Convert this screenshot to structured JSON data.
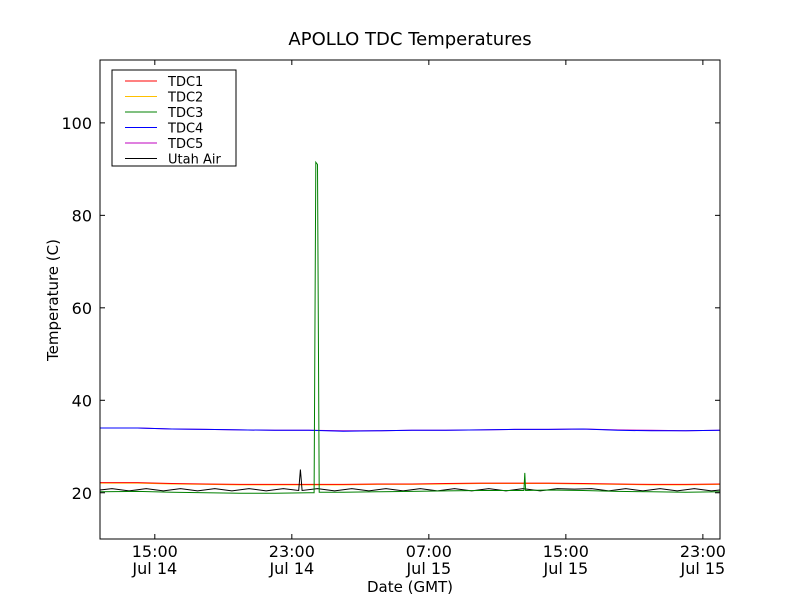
{
  "chart_data": {
    "type": "line",
    "title": "APOLLO TDC Temperatures",
    "xlabel": "Date (GMT)",
    "ylabel": "Temperature (C)",
    "x_units": "hours since Jul 14 00:00 GMT",
    "xlim": [
      11.8,
      48.0
    ],
    "ylim": [
      10,
      113.6
    ],
    "yticks": [
      20,
      40,
      60,
      80,
      100
    ],
    "xticks": [
      {
        "value": 15,
        "time": "15:00",
        "date": "Jul 14"
      },
      {
        "value": 23,
        "time": "23:00",
        "date": "Jul 14"
      },
      {
        "value": 31,
        "time": "07:00",
        "date": "Jul 15"
      },
      {
        "value": 39,
        "time": "15:00",
        "date": "Jul 15"
      },
      {
        "value": 47,
        "time": "23:00",
        "date": "Jul 15"
      }
    ],
    "legend_position": "top-left",
    "grid": false,
    "series": [
      {
        "name": "TDC2",
        "color": "#ffc000",
        "x": [
          11.8,
          14,
          16,
          18,
          20,
          22,
          24,
          26,
          28,
          30,
          32,
          34,
          36,
          38,
          40,
          42,
          44,
          46,
          48
        ],
        "y": [
          22.1,
          22.1,
          21.9,
          21.8,
          21.7,
          21.7,
          21.7,
          21.7,
          21.8,
          21.8,
          21.9,
          22.0,
          22.0,
          22.0,
          21.9,
          21.8,
          21.7,
          21.7,
          21.8
        ]
      },
      {
        "name": "TDC1",
        "color": "#ff0000",
        "x": [
          11.8,
          14,
          16,
          18,
          20,
          22,
          24,
          26,
          28,
          30,
          32,
          34,
          36,
          38,
          40,
          42,
          44,
          46,
          48
        ],
        "y": [
          22.2,
          22.2,
          22.0,
          21.9,
          21.8,
          21.8,
          21.8,
          21.8,
          21.9,
          21.9,
          22.0,
          22.1,
          22.1,
          22.1,
          22.0,
          21.9,
          21.8,
          21.8,
          21.9
        ]
      },
      {
        "name": "TDC5",
        "color": "#bf00bf",
        "x": [
          11.8,
          14,
          16,
          18,
          20,
          22,
          24,
          26,
          28,
          30,
          32,
          34,
          36,
          38,
          40,
          42,
          44,
          46,
          48
        ],
        "y": [
          34.0,
          34.0,
          33.8,
          33.7,
          33.6,
          33.5,
          33.5,
          33.4,
          33.4,
          33.5,
          33.5,
          33.6,
          33.7,
          33.7,
          33.8,
          33.6,
          33.5,
          33.4,
          33.5
        ]
      },
      {
        "name": "TDC4",
        "color": "#0000ff",
        "x": [
          11.8,
          14,
          16,
          18,
          20,
          22,
          24,
          26,
          28,
          30,
          32,
          34,
          36,
          38,
          40,
          42,
          44,
          46,
          48
        ],
        "y": [
          34.0,
          34.0,
          33.8,
          33.7,
          33.6,
          33.5,
          33.5,
          33.3,
          33.4,
          33.5,
          33.5,
          33.6,
          33.7,
          33.7,
          33.8,
          33.5,
          33.4,
          33.4,
          33.5
        ]
      },
      {
        "name": "Utah Air",
        "color": "#000000",
        "x": [
          11.8,
          12.5,
          13.5,
          14.5,
          15.5,
          16.5,
          17.5,
          18.5,
          19.5,
          20.5,
          21.5,
          22.5,
          23.4,
          23.5,
          23.6,
          24.5,
          25.5,
          26.5,
          27.5,
          28.5,
          29.5,
          30.5,
          31.5,
          32.5,
          33.5,
          34.5,
          35.5,
          36.5,
          37.5,
          38.5,
          39.5,
          40.5,
          41.5,
          42.5,
          43.5,
          44.5,
          45.5,
          46.5,
          47.5,
          48
        ],
        "y": [
          20.6,
          20.9,
          20.4,
          20.9,
          20.4,
          20.9,
          20.4,
          20.9,
          20.4,
          20.9,
          20.4,
          20.9,
          20.5,
          25.0,
          20.5,
          20.9,
          20.4,
          20.9,
          20.4,
          20.9,
          20.4,
          20.9,
          20.4,
          20.9,
          20.4,
          20.9,
          20.4,
          20.9,
          20.4,
          20.9,
          20.8,
          20.9,
          20.4,
          20.9,
          20.4,
          20.9,
          20.4,
          20.9,
          20.4,
          20.6
        ]
      },
      {
        "name": "TDC3",
        "color": "#008000",
        "x": [
          11.8,
          14,
          16,
          18,
          20,
          22,
          24,
          24.3,
          24.4,
          24.5,
          24.6,
          26,
          28,
          30,
          32,
          34,
          36,
          36.55,
          36.6,
          36.65,
          38,
          40,
          42,
          44,
          46,
          48
        ],
        "y": [
          20.2,
          20.3,
          20.1,
          20.0,
          19.9,
          19.9,
          20.0,
          20.0,
          91.5,
          91.0,
          20.1,
          20.1,
          20.2,
          20.3,
          20.4,
          20.5,
          20.5,
          20.5,
          24.3,
          20.5,
          20.6,
          20.5,
          20.3,
          20.2,
          20.1,
          20.2
        ]
      }
    ],
    "legend_order": [
      "TDC1",
      "TDC2",
      "TDC3",
      "TDC4",
      "TDC5",
      "Utah Air"
    ]
  }
}
